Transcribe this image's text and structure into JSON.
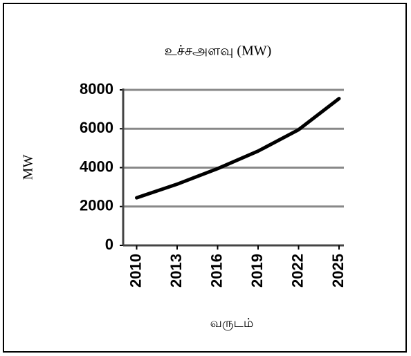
{
  "chart_data": {
    "type": "line",
    "title": "உச்சஅளவு (MW)",
    "y_label": "MW",
    "x_label": "வருடம்",
    "x": [
      2010,
      2013,
      2016,
      2019,
      2022,
      2025
    ],
    "series": [
      {
        "name": "உச்சஅளவு",
        "color": "#000000",
        "values": [
          2450,
          3150,
          3950,
          4850,
          5950,
          7550
        ]
      }
    ],
    "xlim": [
      2009,
      2025
    ],
    "xticks": [
      2010,
      2013,
      2016,
      2019,
      2022,
      2025
    ],
    "ylim": [
      0,
      8000
    ],
    "yticks": [
      0,
      2000,
      4000,
      6000,
      8000
    ],
    "grid": true
  }
}
